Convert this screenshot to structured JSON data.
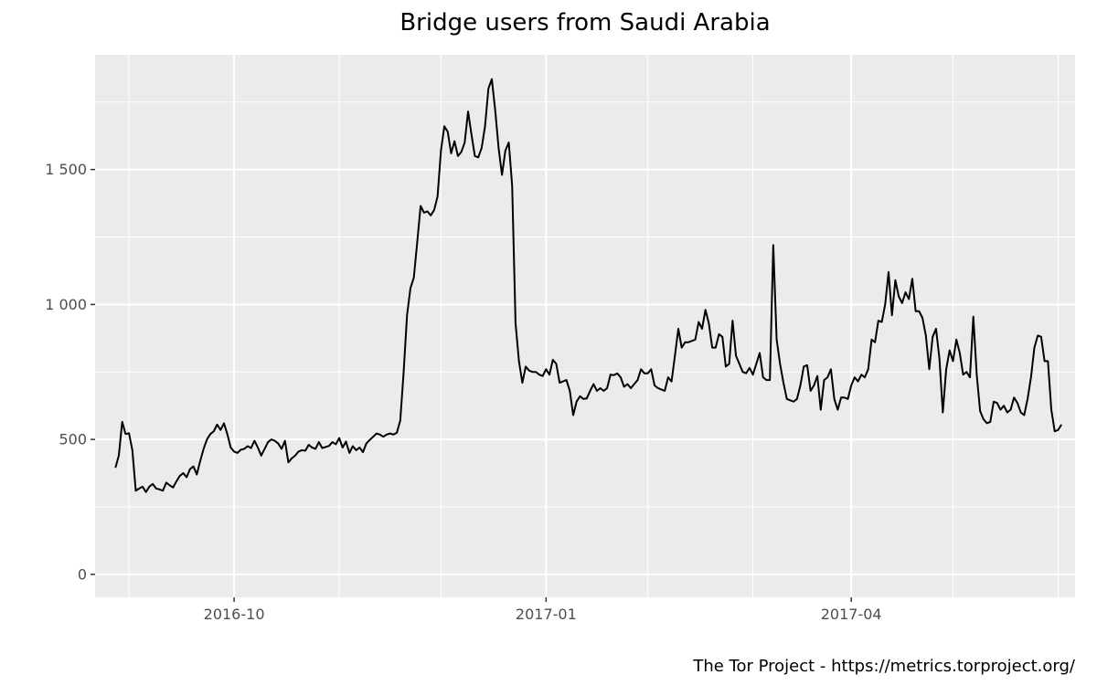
{
  "chart_data": {
    "type": "line",
    "title": "Bridge users from Saudi Arabia",
    "caption": "The Tor Project - https://metrics.torproject.org/",
    "xlabel": "",
    "ylabel": "",
    "grid": true,
    "legend": "none",
    "colors": {
      "panel": "#ebebeb",
      "grid": "#ffffff",
      "line": "#000000",
      "tick_text": "#4d4d4d"
    },
    "xlim": [
      "2016-08-21",
      "2017-06-06"
    ],
    "ylim": [
      -85,
      1925
    ],
    "x_ticks": [
      {
        "date": "2016-10-01",
        "label": "2016-10"
      },
      {
        "date": "2017-01-01",
        "label": "2017-01"
      },
      {
        "date": "2017-04-01",
        "label": "2017-04"
      }
    ],
    "x_minor_ticks": [
      "2016-08-31",
      "2016-11-01",
      "2016-12-01",
      "2017-01-31",
      "2017-03-03",
      "2017-05-01",
      "2017-06-01"
    ],
    "y_ticks": [
      {
        "value": 0,
        "label": "0"
      },
      {
        "value": 500,
        "label": "500"
      },
      {
        "value": 1000,
        "label": "1 000"
      },
      {
        "value": 1500,
        "label": "1 500"
      }
    ],
    "series": [
      {
        "start_date": "2016-08-27",
        "step_days": 1,
        "values": [
          395,
          440,
          565,
          520,
          523,
          460,
          310,
          318,
          325,
          305,
          325,
          335,
          318,
          315,
          310,
          340,
          330,
          322,
          345,
          365,
          375,
          360,
          390,
          400,
          370,
          420,
          465,
          500,
          520,
          530,
          555,
          535,
          560,
          520,
          470,
          455,
          450,
          462,
          465,
          475,
          468,
          495,
          470,
          440,
          465,
          490,
          500,
          495,
          485,
          465,
          495,
          415,
          430,
          440,
          455,
          460,
          458,
          480,
          470,
          465,
          490,
          468,
          472,
          476,
          490,
          482,
          505,
          470,
          492,
          450,
          475,
          460,
          470,
          453,
          485,
          498,
          510,
          522,
          518,
          510,
          518,
          522,
          518,
          525,
          570,
          750,
          960,
          1060,
          1100,
          1230,
          1365,
          1340,
          1345,
          1330,
          1350,
          1400,
          1570,
          1660,
          1640,
          1560,
          1605,
          1550,
          1565,
          1600,
          1715,
          1630,
          1550,
          1545,
          1580,
          1660,
          1800,
          1835,
          1720,
          1580,
          1480,
          1570,
          1600,
          1440,
          930,
          790,
          710,
          770,
          755,
          750,
          750,
          740,
          735,
          760,
          740,
          795,
          780,
          710,
          715,
          720,
          680,
          590,
          640,
          660,
          650,
          652,
          680,
          705,
          680,
          690,
          680,
          690,
          740,
          738,
          745,
          730,
          695,
          705,
          690,
          705,
          720,
          760,
          745,
          745,
          760,
          700,
          690,
          685,
          680,
          730,
          715,
          810,
          910,
          840,
          860,
          860,
          865,
          870,
          935,
          910,
          980,
          930,
          840,
          840,
          890,
          880,
          770,
          780,
          940,
          810,
          780,
          750,
          745,
          765,
          740,
          780,
          820,
          730,
          720,
          720,
          1220,
          870,
          780,
          710,
          650,
          645,
          640,
          650,
          700,
          770,
          775,
          680,
          700,
          735,
          610,
          720,
          730,
          760,
          650,
          610,
          655,
          655,
          650,
          700,
          730,
          715,
          740,
          730,
          760,
          870,
          860,
          940,
          935,
          1000,
          1120,
          960,
          1090,
          1030,
          1005,
          1045,
          1020,
          1095,
          975,
          975,
          950,
          885,
          760,
          880,
          910,
          800,
          600,
          760,
          830,
          790,
          870,
          820,
          740,
          750,
          730,
          955,
          740,
          605,
          575,
          560,
          565,
          640,
          635,
          610,
          625,
          600,
          610,
          655,
          635,
          600,
          590,
          650,
          730,
          840,
          885,
          880,
          790,
          790,
          610,
          530,
          535,
          555
        ]
      }
    ]
  }
}
